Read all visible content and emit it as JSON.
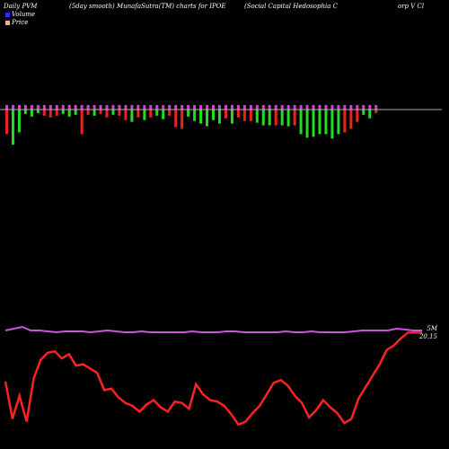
{
  "header": {
    "left": "Daily PVM",
    "center": "(5day smooth) MunafaSutra(TM) charts for IPOE",
    "right": "(Social Capital Hedosophia  C",
    "right_cont": "orp V Cl"
  },
  "legend": {
    "volume_label": "Volume",
    "price_label": "Price",
    "volume_color": "#2d2dff",
    "price_color": "#f5b08a"
  },
  "right_labels": {
    "line1": "5M",
    "line2": "20.15"
  },
  "colors": {
    "background": "#000000",
    "up_bar": "#22dd22",
    "down_bar": "#ee2222",
    "base_bar": "#cc44cc",
    "baseline": "#b0b0b0",
    "purple_line": "#cc55dd",
    "price_line": "#ff2222"
  },
  "chart_data": {
    "type": "bar",
    "ylim_volume": [
      0,
      45
    ],
    "volume_signed": [
      -28,
      -40,
      -26,
      -5,
      -8,
      -4,
      -7,
      -9,
      -7,
      -5,
      -8,
      -6,
      -28,
      -6,
      -7,
      -5,
      -9,
      -6,
      -7,
      -12,
      -14,
      -9,
      -12,
      -9,
      -7,
      -11,
      -7,
      -20,
      -22,
      -8,
      -13,
      -16,
      -19,
      -12,
      -16,
      -10,
      -16,
      -9,
      -13,
      -13,
      -15,
      -18,
      -18,
      -18,
      -18,
      -19,
      -18,
      -28,
      -32,
      -31,
      -28,
      -28,
      -33,
      -28,
      -26,
      -22,
      -14,
      -6,
      -10,
      -4
    ],
    "purple_line": [
      92,
      94,
      96,
      92,
      92,
      91,
      90,
      91,
      91,
      91,
      90,
      91,
      92,
      91,
      90,
      90,
      91,
      90,
      90,
      90,
      90,
      90,
      91,
      90,
      90,
      90,
      91,
      91,
      90,
      90,
      90,
      90,
      90,
      91,
      90,
      90,
      91,
      90,
      90,
      90,
      90,
      91,
      92,
      92,
      92,
      92,
      94,
      93,
      92,
      92
    ],
    "price": [
      32,
      6,
      22,
      4,
      34,
      47,
      52,
      53,
      48,
      51,
      43,
      44,
      41,
      38,
      26,
      27,
      21,
      17,
      15,
      11,
      16,
      19,
      14,
      11,
      18,
      17,
      13,
      30,
      23,
      19,
      18,
      15,
      9,
      2,
      4,
      10,
      15,
      23,
      31,
      33,
      29,
      22,
      17,
      7,
      12,
      19,
      14,
      10,
      3,
      6,
      20,
      28,
      36,
      44,
      54,
      57,
      62,
      66,
      66,
      66
    ],
    "right_values": [
      "5M",
      "20.15"
    ]
  }
}
